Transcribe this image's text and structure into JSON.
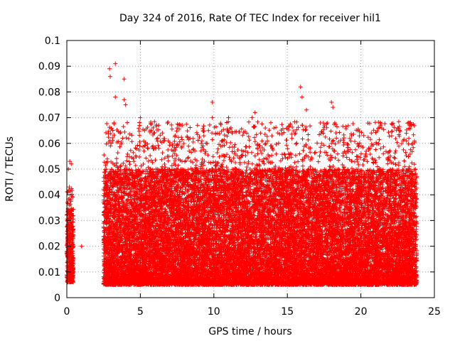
{
  "chart_data": {
    "type": "scatter",
    "title": "Day 324 of 2016, Rate Of TEC Index for receiver hil1",
    "xlabel": "GPS time / hours",
    "ylabel": "ROTI / TECUs",
    "xlim": [
      0,
      25
    ],
    "ylim": [
      0,
      0.1
    ],
    "x_ticks": [
      0,
      5,
      10,
      15,
      20,
      25
    ],
    "x_tick_labels": [
      "0",
      "5",
      "10",
      "15",
      "20",
      "25"
    ],
    "y_ticks": [
      0,
      0.01,
      0.02,
      0.03,
      0.04,
      0.05,
      0.06,
      0.07,
      0.08,
      0.09,
      0.1
    ],
    "y_tick_labels": [
      "0",
      "0.01",
      "0.02",
      "0.03",
      "0.04",
      "0.05",
      "0.06",
      "0.07",
      "0.08",
      "0.09",
      "0.1"
    ],
    "grid": true,
    "marker": "+",
    "series": [
      {
        "name": "ROTI",
        "color": "#ff0000",
        "segments": [
          {
            "x_range": [
              0.0,
              0.45
            ],
            "y_typical": [
              0.006,
              0.035
            ],
            "y_max": 0.054
          },
          {
            "x_range": [
              2.5,
              23.8
            ],
            "y_typical": [
              0.005,
              0.05
            ],
            "y_max": 0.091
          }
        ],
        "points": [
          [
            0.1,
            0.05
          ],
          [
            0.2,
            0.053
          ],
          [
            0.3,
            0.052
          ],
          [
            2.9,
            0.089
          ],
          [
            2.95,
            0.086
          ],
          [
            3.3,
            0.091
          ],
          [
            3.3,
            0.078
          ],
          [
            3.9,
            0.085
          ],
          [
            3.9,
            0.077
          ],
          [
            4.0,
            0.075
          ],
          [
            5.0,
            0.07
          ],
          [
            4.95,
            0.067
          ],
          [
            6.5,
            0.064
          ],
          [
            9.9,
            0.076
          ],
          [
            9.9,
            0.07
          ],
          [
            11.0,
            0.07
          ],
          [
            12.8,
            0.072
          ],
          [
            12.6,
            0.07
          ],
          [
            13.5,
            0.066
          ],
          [
            15.9,
            0.082
          ],
          [
            16.0,
            0.078
          ],
          [
            16.3,
            0.073
          ],
          [
            18.0,
            0.076
          ],
          [
            18.1,
            0.074
          ],
          [
            18.0,
            0.06
          ],
          [
            19.8,
            0.065
          ],
          [
            20.2,
            0.063
          ],
          [
            22.5,
            0.066
          ],
          [
            23.1,
            0.061
          ],
          [
            19.5,
            0.031
          ],
          [
            20.5,
            0.008
          ],
          [
            1.0,
            0.02
          ],
          [
            23.5,
            0.006
          ]
        ]
      }
    ]
  }
}
